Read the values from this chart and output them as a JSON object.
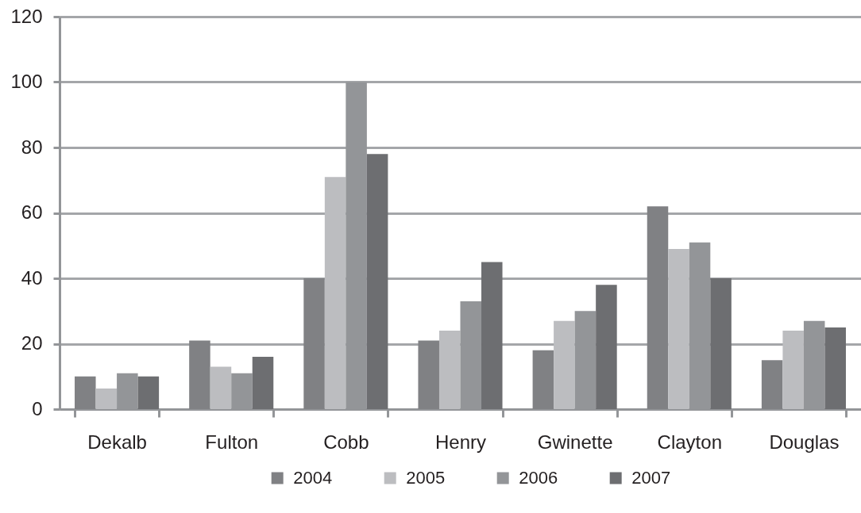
{
  "chart_data": {
    "type": "bar",
    "categories": [
      "Dekalb",
      "Fulton",
      "Cobb",
      "Henry",
      "Gwinette",
      "Clayton",
      "Douglas"
    ],
    "series": [
      {
        "name": "2004",
        "color": "#808184",
        "values": [
          10,
          21,
          40,
          21,
          18,
          62,
          15
        ]
      },
      {
        "name": "2005",
        "color": "#bcbdc0",
        "values": [
          6.3,
          13,
          71,
          24,
          27,
          49,
          24
        ]
      },
      {
        "name": "2006",
        "color": "#939598",
        "values": [
          11,
          11,
          100,
          33,
          30,
          51,
          27
        ]
      },
      {
        "name": "2007",
        "color": "#6d6e71",
        "values": [
          10,
          16,
          78,
          45,
          38,
          40,
          25
        ]
      }
    ],
    "ylim": [
      0,
      120
    ],
    "yticks": [
      0,
      20,
      40,
      60,
      80,
      100,
      120
    ],
    "grid": "y",
    "legend": "bottom"
  }
}
